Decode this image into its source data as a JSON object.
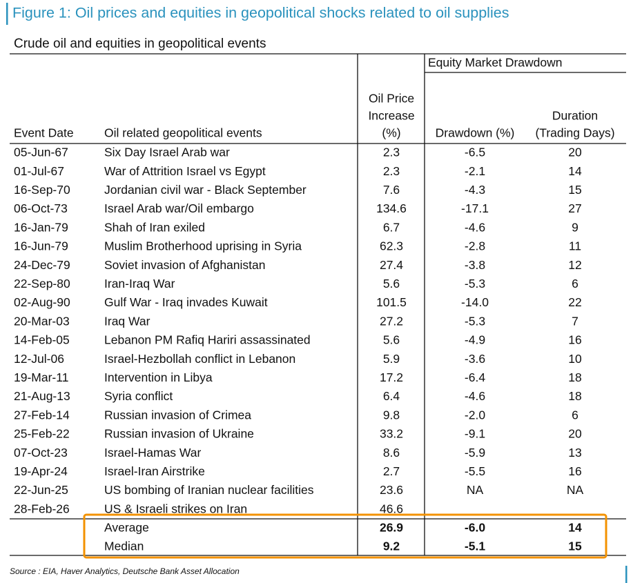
{
  "figure_title": "Figure 1: Oil prices and equities in geopolitical shocks related to oil supplies",
  "table": {
    "title": "Crude oil and equities in geopolitical events",
    "group_header": "Equity Market Drawdown",
    "columns": [
      [
        "Event Date"
      ],
      [
        "Oil related geopolitical events"
      ],
      [
        "Oil Price",
        "Increase",
        "(%)"
      ],
      [
        "Drawdown (%)"
      ],
      [
        "Duration",
        "(Trading Days)"
      ]
    ],
    "rows": [
      [
        "05-Jun-67",
        "Six Day Israel Arab war",
        "2.3",
        "-6.5",
        "20"
      ],
      [
        "01-Jul-67",
        "War of Attrition Israel vs Egypt",
        "2.3",
        "-2.1",
        "14"
      ],
      [
        "16-Sep-70",
        "Jordanian civil war - Black September",
        "7.6",
        "-4.3",
        "15"
      ],
      [
        "06-Oct-73",
        "Israel Arab war/Oil embargo",
        "134.6",
        "-17.1",
        "27"
      ],
      [
        "16-Jan-79",
        "Shah of Iran exiled",
        "6.7",
        "-4.6",
        "9"
      ],
      [
        "16-Jun-79",
        "Muslim Brotherhood uprising in Syria",
        "62.3",
        "-2.8",
        "11"
      ],
      [
        "24-Dec-79",
        "Soviet invasion of Afghanistan",
        "27.4",
        "-3.8",
        "12"
      ],
      [
        "22-Sep-80",
        "Iran-Iraq War",
        "5.6",
        "-5.3",
        "6"
      ],
      [
        "02-Aug-90",
        "Gulf War - Iraq invades Kuwait",
        "101.5",
        "-14.0",
        "22"
      ],
      [
        "20-Mar-03",
        "Iraq War",
        "27.2",
        "-5.3",
        "7"
      ],
      [
        "14-Feb-05",
        "Lebanon PM Rafiq Hariri assassinated",
        "5.6",
        "-4.9",
        "16"
      ],
      [
        "12-Jul-06",
        "Israel-Hezbollah conflict in Lebanon",
        "5.9",
        "-3.6",
        "10"
      ],
      [
        "19-Mar-11",
        "Intervention in Libya",
        "17.2",
        "-6.4",
        "18"
      ],
      [
        "21-Aug-13",
        "Syria conflict",
        "6.4",
        "-4.6",
        "18"
      ],
      [
        "27-Feb-14",
        "Russian invasion of Crimea",
        "9.8",
        "-2.0",
        "6"
      ],
      [
        "25-Feb-22",
        "Russian invasion of Ukraine",
        "33.2",
        "-9.1",
        "20"
      ],
      [
        "07-Oct-23",
        "Israel-Hamas War",
        "8.6",
        "-5.9",
        "13"
      ],
      [
        "19-Apr-24",
        "Israel-Iran Airstrike",
        "2.7",
        "-5.5",
        "16"
      ],
      [
        "22-Jun-25",
        "US bombing of Iranian nuclear facilities",
        "23.6",
        "NA",
        "NA"
      ],
      [
        "28-Feb-26",
        "US & Israeli strikes on Iran",
        "46.6"
      ]
    ],
    "summary": [
      [
        "Average",
        "26.9",
        "-6.0",
        "14"
      ],
      [
        "Median",
        "9.2",
        "-5.1",
        "15"
      ]
    ]
  },
  "source": "Source : EIA, Haver Analytics, Deutsche Bank Asset Allocation"
}
